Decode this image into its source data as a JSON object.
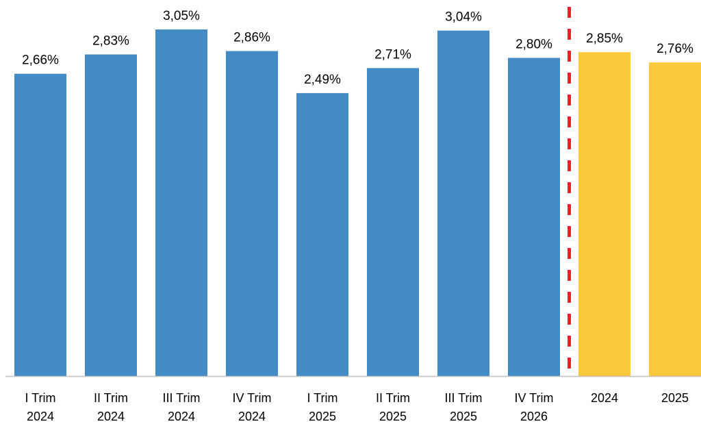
{
  "chart_data": {
    "type": "bar",
    "title": "",
    "xlabel": "",
    "ylabel": "",
    "ylim": [
      0,
      3.2
    ],
    "grid": false,
    "legend": "none",
    "categories": [
      [
        "I Trim",
        "2024"
      ],
      [
        "II Trim",
        "2024"
      ],
      [
        "III Trim",
        "2024"
      ],
      [
        "IV Trim",
        "2024"
      ],
      [
        "I Trim",
        "2025"
      ],
      [
        "II Trim",
        "2025"
      ],
      [
        "III Trim",
        "2025"
      ],
      [
        "IV Trim",
        "2026"
      ],
      [
        "2024"
      ],
      [
        "2025"
      ]
    ],
    "values": [
      2.66,
      2.83,
      3.05,
      2.86,
      2.49,
      2.71,
      3.04,
      2.8,
      2.85,
      2.76
    ],
    "data_labels": [
      "2,66%",
      "2,83%",
      "3,05%",
      "2,86%",
      "2,49%",
      "2,71%",
      "3,04%",
      "2,80%",
      "2,85%",
      "2,76%"
    ],
    "bar_colors": [
      "#428BC4",
      "#428BC4",
      "#428BC4",
      "#428BC4",
      "#428BC4",
      "#428BC4",
      "#428BC4",
      "#428BC4",
      "#FAC93C",
      "#FAC93C"
    ],
    "separator": {
      "after_index": 7,
      "color": "#E8212B",
      "style": "dashed"
    },
    "axis_color": "#BFBFBF"
  }
}
